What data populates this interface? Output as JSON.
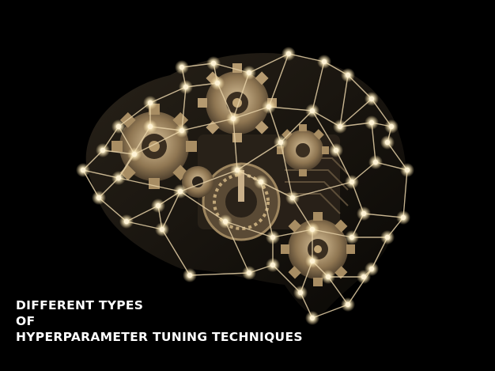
{
  "image": {
    "subject": "brain-wireframe-with-gears",
    "background_color": "#000000",
    "accent_color": "#c9a66b",
    "node_color": "#fff3d6"
  },
  "caption": {
    "line1": "Different Types",
    "line2": "of",
    "line3": "Hyperparameter Tuning Techniques",
    "color": "#ffffff"
  }
}
